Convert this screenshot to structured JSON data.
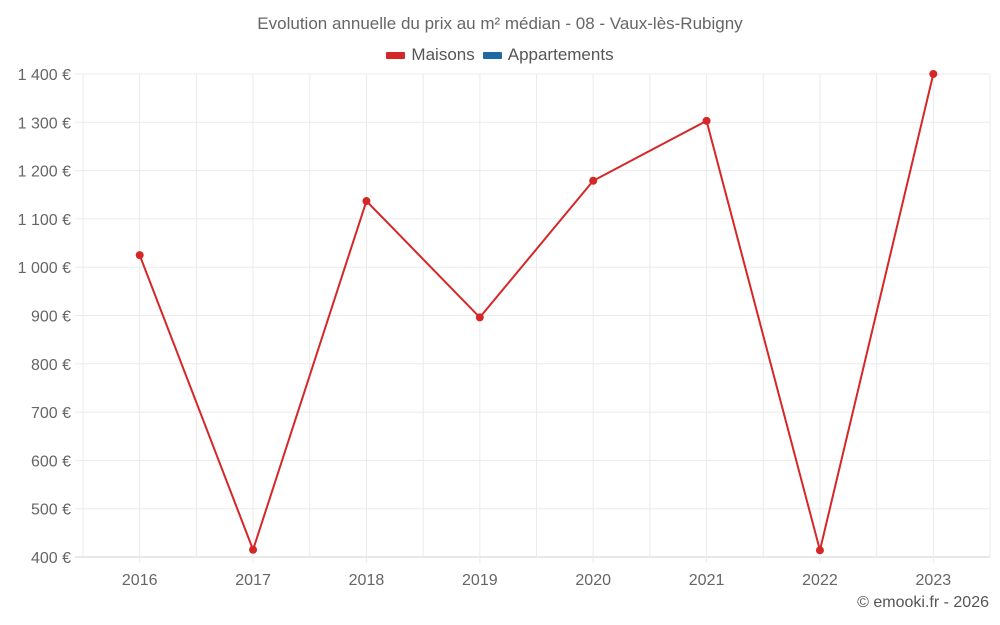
{
  "chart": {
    "title": "Evolution annuelle du prix au m² médian - 08 - Vaux-lès-Rubigny",
    "credit": "© emooki.fr - 2026",
    "legend": [
      {
        "label": "Maisons",
        "color": "#d62728"
      },
      {
        "label": "Appartements",
        "color": "#1f6aa5"
      }
    ]
  },
  "chart_data": {
    "type": "line",
    "title": "Evolution annuelle du prix au m² médian - 08 - Vaux-lès-Rubigny",
    "xlabel": "",
    "ylabel": "",
    "categories": [
      "2016",
      "2017",
      "2018",
      "2019",
      "2020",
      "2021",
      "2022",
      "2023"
    ],
    "series": [
      {
        "name": "Maisons",
        "color": "#d62728",
        "values": [
          1025,
          415,
          1137,
          896,
          1179,
          1303,
          414,
          1400
        ]
      },
      {
        "name": "Appartements",
        "color": "#1f6aa5",
        "values": []
      }
    ],
    "y_ticks": [
      "400 €",
      "500 €",
      "600 €",
      "700 €",
      "800 €",
      "900 €",
      "1 000 €",
      "1 100 €",
      "1 200 €",
      "1 300 €",
      "1 400 €"
    ],
    "ylim": [
      400,
      1400
    ],
    "grid": true,
    "legend_position": "top"
  }
}
